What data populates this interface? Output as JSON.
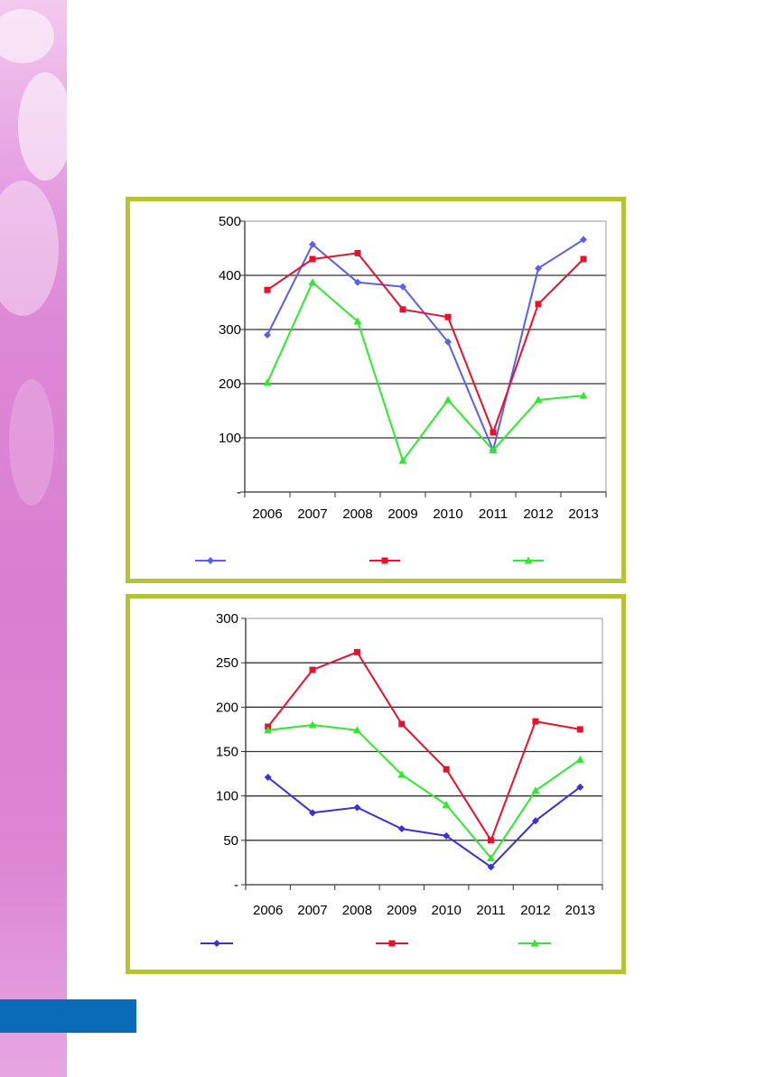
{
  "colors": {
    "frame": "#b5c334",
    "side_strip": "#dd88d6",
    "bottom_bar": "#0a6bb8",
    "series": [
      "#5a5ff0",
      "#e8102a",
      "#2eea2e"
    ],
    "series_chart2": [
      "#3a2fd8",
      "#e8102a",
      "#2eea2e"
    ]
  },
  "chart_data": [
    {
      "type": "line",
      "x": [
        "2006",
        "2007",
        "2008",
        "2009",
        "2010",
        "2011",
        "2012",
        "2013"
      ],
      "y_ticks": [
        "-",
        "100",
        "200",
        "300",
        "400",
        "500"
      ],
      "ylim": [
        0,
        500
      ],
      "grid": true,
      "legend": "bottom",
      "series": [
        {
          "values": [
            290,
            457,
            387,
            379,
            277,
            77,
            413,
            466
          ],
          "marker": "diamond"
        },
        {
          "values": [
            373,
            430,
            441,
            337,
            323,
            110,
            347,
            430
          ],
          "marker": "square"
        },
        {
          "values": [
            202,
            387,
            315,
            58,
            170,
            77,
            170,
            178
          ],
          "marker": "triangle"
        }
      ]
    },
    {
      "type": "line",
      "x": [
        "2006",
        "2007",
        "2008",
        "2009",
        "2010",
        "2011",
        "2012",
        "2013"
      ],
      "y_ticks": [
        "-",
        "50",
        "100",
        "150",
        "200",
        "250",
        "300"
      ],
      "ylim": [
        0,
        300
      ],
      "grid": true,
      "legend": "bottom",
      "series": [
        {
          "values": [
            121,
            81,
            87,
            63,
            55,
            20,
            72,
            110
          ],
          "marker": "diamond"
        },
        {
          "values": [
            178,
            242,
            262,
            181,
            130,
            50,
            184,
            175
          ],
          "marker": "square"
        },
        {
          "values": [
            174,
            180,
            174,
            124,
            90,
            30,
            106,
            141
          ],
          "marker": "triangle"
        }
      ]
    }
  ]
}
